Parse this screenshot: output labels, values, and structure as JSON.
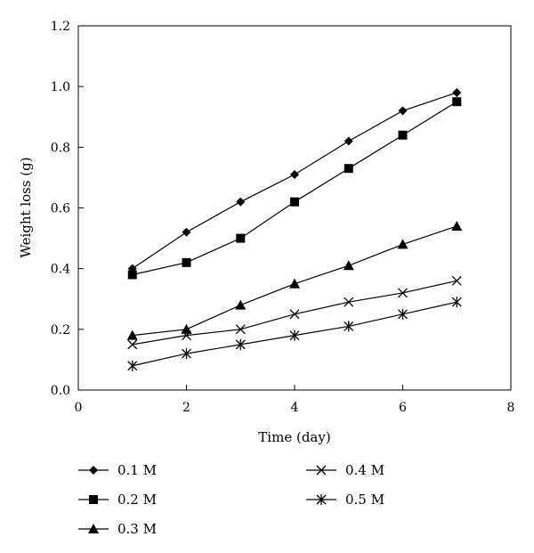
{
  "chart_data": {
    "type": "line",
    "title": "",
    "xlabel": "Time (day)",
    "ylabel": "Weight loss (g)",
    "xlim": [
      0,
      8
    ],
    "ylim": [
      0.0,
      1.2
    ],
    "x_ticks": [
      0,
      2,
      4,
      6,
      8
    ],
    "x_tick_labels": [
      "0",
      "2",
      "4",
      "6",
      "8"
    ],
    "y_ticks": [
      0.0,
      0.2,
      0.4,
      0.6,
      0.8,
      1.0,
      1.2
    ],
    "y_tick_labels": [
      "0.0",
      "0.2",
      "0.4",
      "0.6",
      "0.8",
      "1.0",
      "1.2"
    ],
    "grid": false,
    "legend_position": "bottom",
    "x": [
      1,
      2,
      3,
      4,
      5,
      6,
      7
    ],
    "series": [
      {
        "name": "0.1 M",
        "marker": "diamond",
        "values": [
          0.4,
          0.52,
          0.62,
          0.71,
          0.82,
          0.92,
          0.98
        ]
      },
      {
        "name": "0.2 M",
        "marker": "square",
        "values": [
          0.38,
          0.42,
          0.5,
          0.62,
          0.73,
          0.84,
          0.95
        ]
      },
      {
        "name": "0.3 M",
        "marker": "triangle",
        "values": [
          0.18,
          0.2,
          0.28,
          0.35,
          0.41,
          0.48,
          0.54
        ]
      },
      {
        "name": "0.4 M",
        "marker": "x",
        "values": [
          0.15,
          0.18,
          0.2,
          0.25,
          0.29,
          0.32,
          0.36
        ]
      },
      {
        "name": "0.5 M",
        "marker": "star",
        "values": [
          0.08,
          0.12,
          0.15,
          0.18,
          0.21,
          0.25,
          0.29
        ]
      }
    ],
    "colors": {
      "line": "#000000",
      "background": "#ffffff"
    }
  }
}
